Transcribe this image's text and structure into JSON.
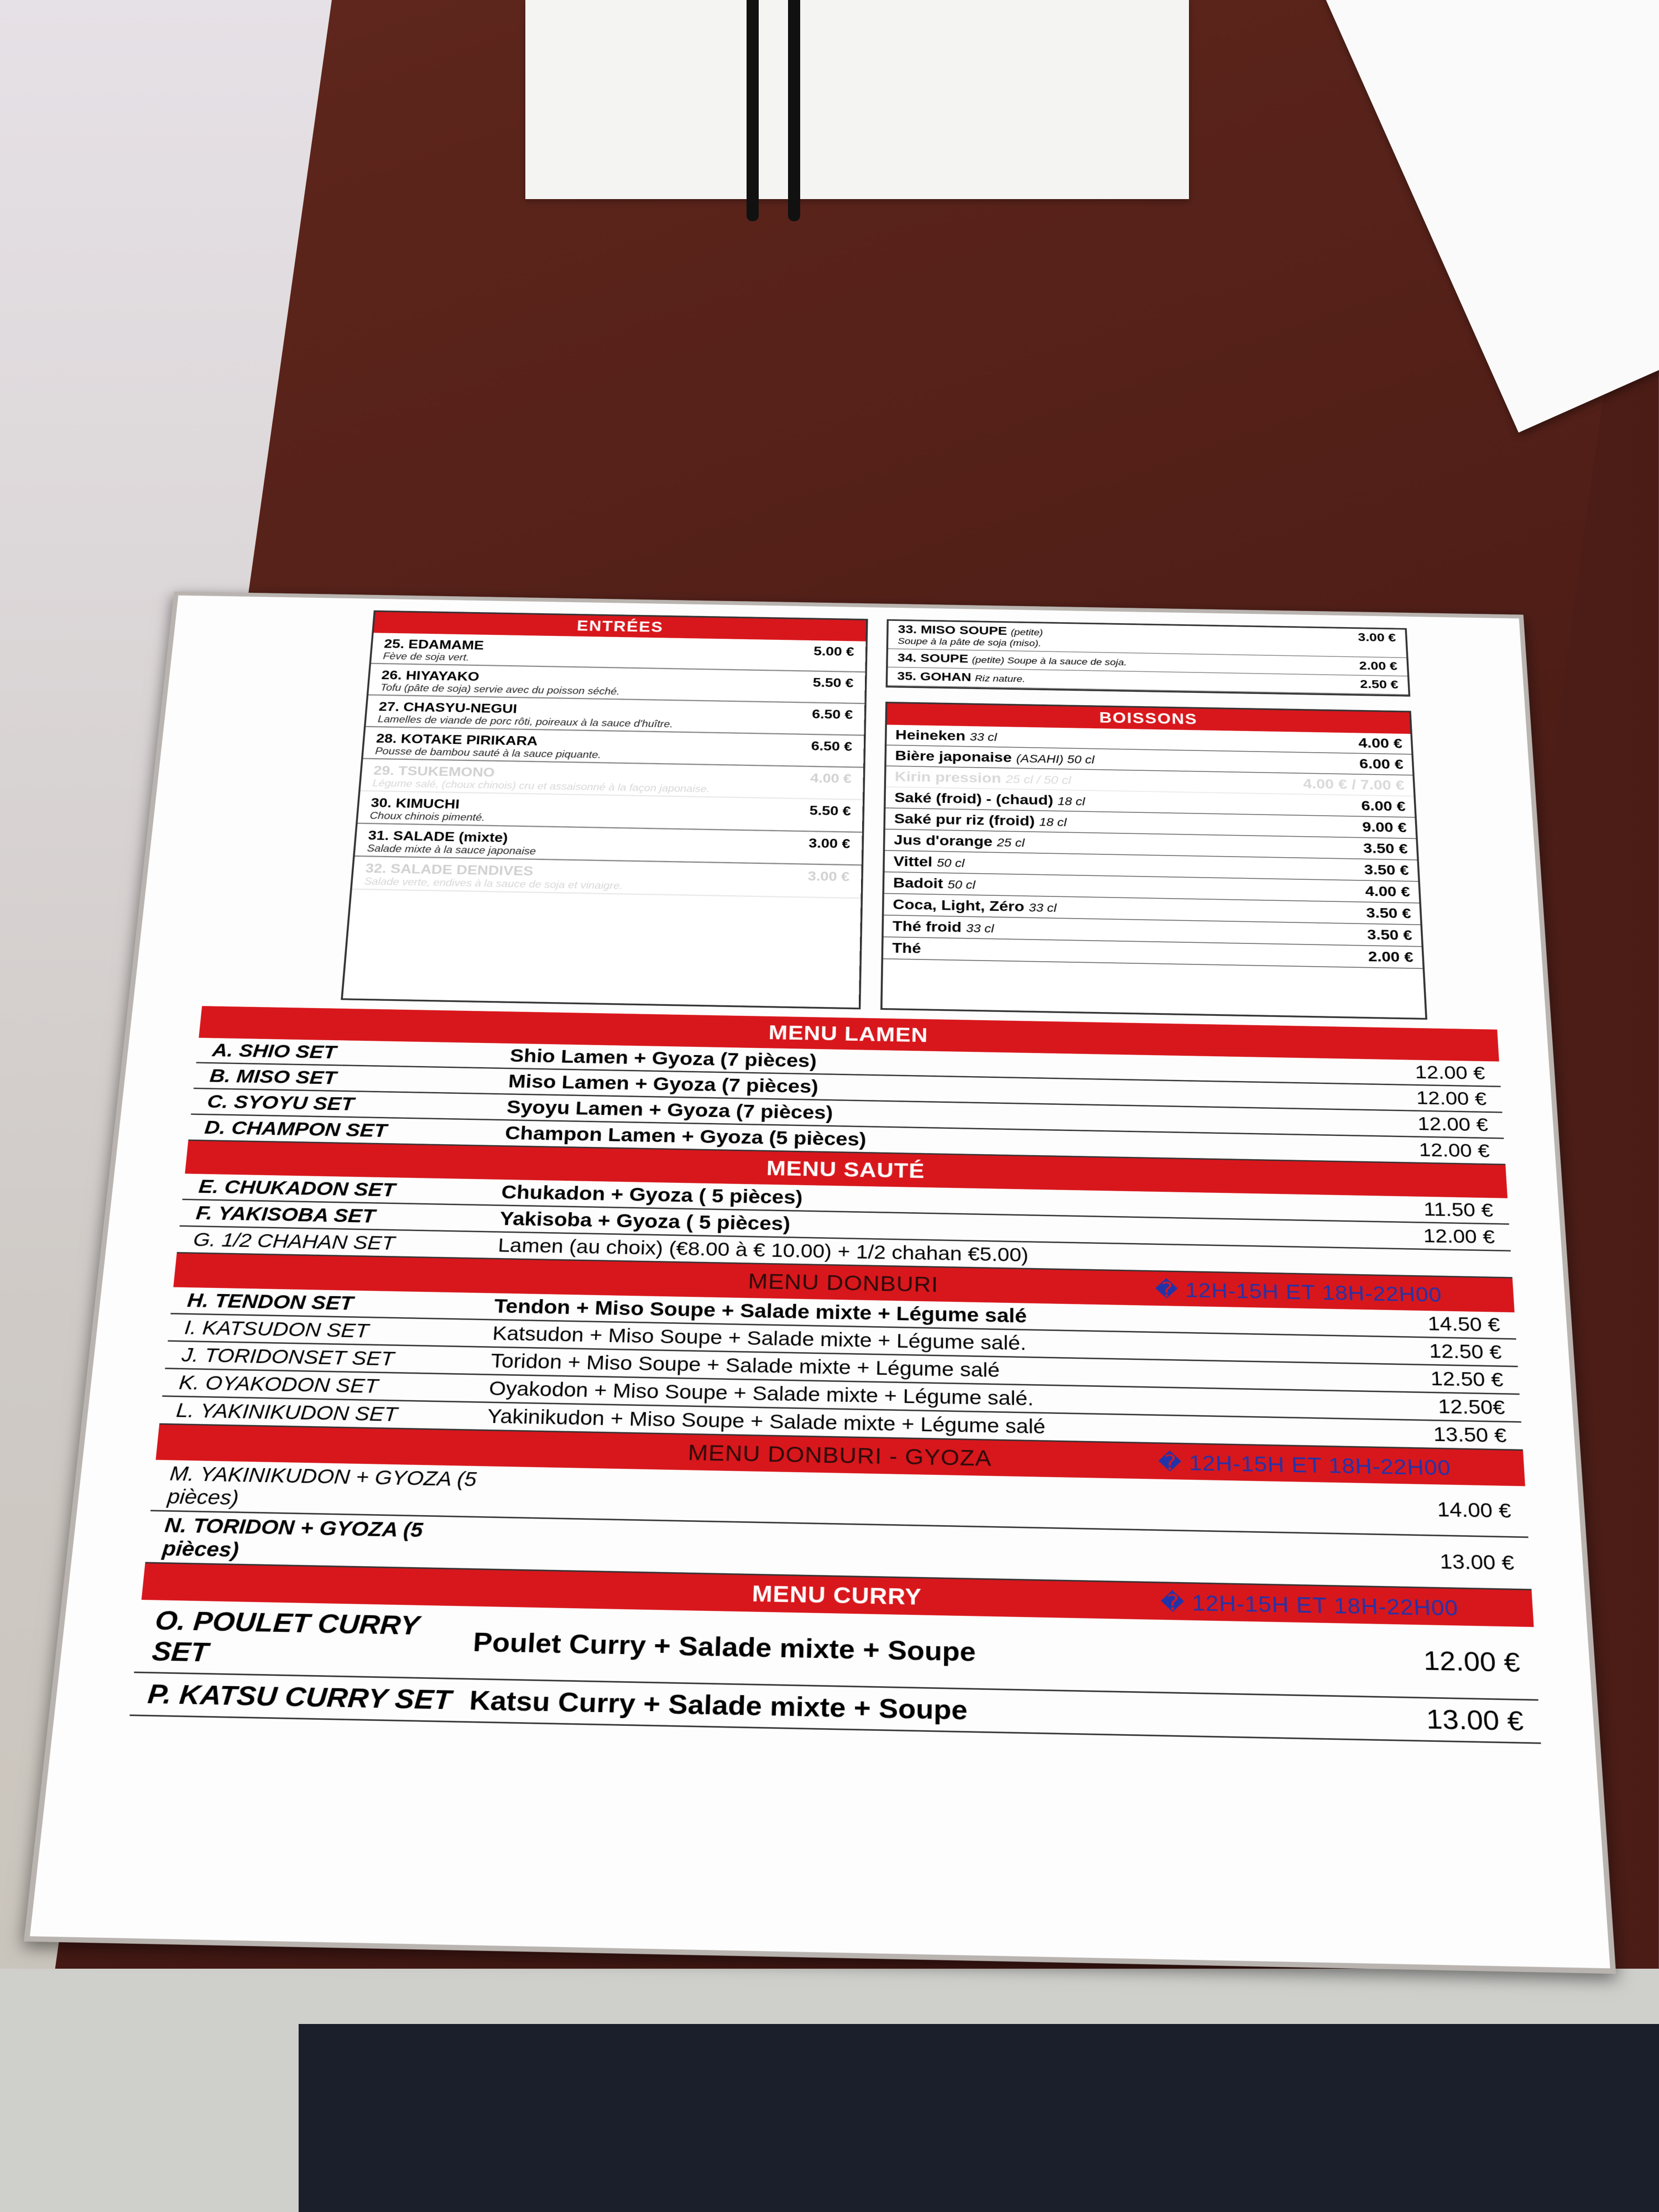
{
  "entrees": {
    "title": "ENTRÉES",
    "items": [
      {
        "name": "25. EDAMAME",
        "price": "5.00 €",
        "desc": "Fève de soja vert."
      },
      {
        "name": "26. HIYAYAKO",
        "price": "5.50 €",
        "desc": "Tofu (pâte de soja) servie avec du poisson séché."
      },
      {
        "name": "27. CHASYU-NEGUI",
        "price": "6.50 €",
        "desc": "Lamelles de viande de porc rôti, poireaux à la sauce d'huître."
      },
      {
        "name": "28. KOTAKE PIRIKARA",
        "price": "6.50 €",
        "desc": "Pousse de bambou sauté à la sauce piquante."
      },
      {
        "name": "29. TSUKEMONO",
        "price": "4.00 €",
        "desc": "Légume salé, (choux chinois) cru et assaisonné à la façon japonaise.",
        "covered": true
      },
      {
        "name": "30. KIMUCHI",
        "price": "5.50 €",
        "desc": "Choux chinois pimenté."
      },
      {
        "name": "31. SALADE (mixte)",
        "price": "3.00 €",
        "desc": "Salade mixte à la sauce japonaise"
      },
      {
        "name": "32. SALADE DENDIVES",
        "price": "3.00 €",
        "desc": "Salade verte, endives à la sauce de soja et vinaigre.",
        "covered": true
      }
    ]
  },
  "soups": [
    {
      "name": "33. MISO SOUPE",
      "note": "(petite)",
      "desc": "Soupe à la pâte de soja (miso).",
      "price": "3.00 €"
    },
    {
      "name": "34. SOUPE",
      "note": "(petite) Soupe à la sauce de soja.",
      "desc": "",
      "price": "2.00 €"
    },
    {
      "name": "35. GOHAN",
      "note": "Riz nature.",
      "desc": "",
      "price": "2.50 €"
    }
  ],
  "boissons": {
    "title": "BOISSONS",
    "items": [
      {
        "name": "Heineken",
        "size": "33 cl",
        "price": "4.00 €"
      },
      {
        "name": "Bière japonaise",
        "size": "(ASAHI) 50 cl",
        "price": "6.00 €"
      },
      {
        "name": "Kirin pression",
        "size": "25 cl / 50 cl",
        "price": "4.00 € / 7.00 €",
        "covered": true
      },
      {
        "name": "Saké (froid) - (chaud)",
        "size": "18 cl",
        "price": "6.00 €"
      },
      {
        "name": "Saké pur riz (froid)",
        "size": "18 cl",
        "price": "9.00 €"
      },
      {
        "name": "Jus d'orange",
        "size": "25 cl",
        "price": "3.50 €"
      },
      {
        "name": "Vittel",
        "size": "50 cl",
        "price": "3.50 €"
      },
      {
        "name": "Badoit",
        "size": "50 cl",
        "price": "4.00 €"
      },
      {
        "name": "Coca, Light, Zéro",
        "size": "33 cl",
        "price": "3.50 €"
      },
      {
        "name": "Thé froid",
        "size": "33 cl",
        "price": "3.50 €"
      },
      {
        "name": "Thé",
        "size": "",
        "price": "2.00 €"
      }
    ]
  },
  "sections": [
    {
      "title": "MENU LAMEN",
      "hours": "",
      "style": "bold",
      "items": [
        {
          "code": "A. SHIO SET",
          "desc": "Shio Lamen + Gyoza (7 pièces)",
          "price": "12.00 €"
        },
        {
          "code": "B. MISO SET",
          "desc": "Miso Lamen + Gyoza (7 pièces)",
          "price": "12.00 €"
        },
        {
          "code": "C. SYOYU SET",
          "desc": "Syoyu Lamen + Gyoza (7 pièces)",
          "price": "12.00 €"
        },
        {
          "code": "D. CHAMPON SET",
          "desc": "Champon Lamen + Gyoza (5 pièces)",
          "price": "12.00 €"
        }
      ]
    },
    {
      "title": "MENU SAUTÉ",
      "hours": "",
      "style": "bold",
      "items": [
        {
          "code": "E. CHUKADON SET",
          "desc": "Chukadon + Gyoza ( 5 pièces)",
          "price": "11.50 €"
        },
        {
          "code": "F. YAKISOBA SET",
          "desc": "Yakisoba + Gyoza ( 5 pièces)",
          "price": "12.00 €"
        },
        {
          "code": "G. 1/2 CHAHAN SET",
          "desc": "Lamen (au choix) (€8.00 à € 10.00) + 1/2 chahan €5.00)",
          "price": "",
          "light": true
        }
      ]
    },
    {
      "title": "MENU DONBURI",
      "hours": "� 12H-15H ET 18H-22H00",
      "style": "thin",
      "items": [
        {
          "code": "H. TENDON SET",
          "desc": "Tendon + Miso Soupe + Salade mixte + Légume salé",
          "price": "14.50 €"
        },
        {
          "code": "I. KATSUDON SET",
          "desc": "Katsudon + Miso Soupe + Salade mixte + Légume salé.",
          "price": "12.50 €",
          "light": true
        },
        {
          "code": "J. TORIDONSET SET",
          "desc": "Toridon + Miso Soupe + Salade mixte + Légume salé",
          "price": "12.50 €",
          "light": true
        },
        {
          "code": "K. OYAKODON SET",
          "desc": "Oyakodon + Miso Soupe + Salade mixte + Légume salé.",
          "price": "12.50€",
          "light": true
        },
        {
          "code": "L. YAKINIKUDON SET",
          "desc": "Yakinikudon + Miso Soupe + Salade mixte + Légume salé",
          "price": "13.50 €",
          "light": true
        }
      ]
    },
    {
      "title": "MENU DONBURI - GYOZA",
      "hours": "� 12H-15H ET 18H-22H00",
      "style": "thin",
      "items": [
        {
          "code": "M. YAKINIKUDON + GYOZA (5 pièces)",
          "desc": "",
          "price": "14.00 €",
          "light": true
        },
        {
          "code": "N. TORIDON + GYOZA (5 pièces)",
          "desc": "",
          "price": "13.00 €"
        }
      ]
    },
    {
      "title": "MENU CURRY",
      "hours": "� 12H-15H ET 18H-22H00",
      "style": "bold",
      "items": [
        {
          "code": "O. POULET CURRY SET",
          "desc": "Poulet Curry + Salade mixte + Soupe",
          "price": "12.00 €",
          "big": true
        },
        {
          "code": "P. KATSU CURRY SET",
          "desc": "Katsu Curry + Salade mixte + Soupe",
          "price": "13.00 €",
          "big": true
        }
      ]
    }
  ],
  "colors": {
    "header_red": "#d8171c",
    "hours_blue": "#2233aa",
    "table_wood": "#4a1b15"
  }
}
